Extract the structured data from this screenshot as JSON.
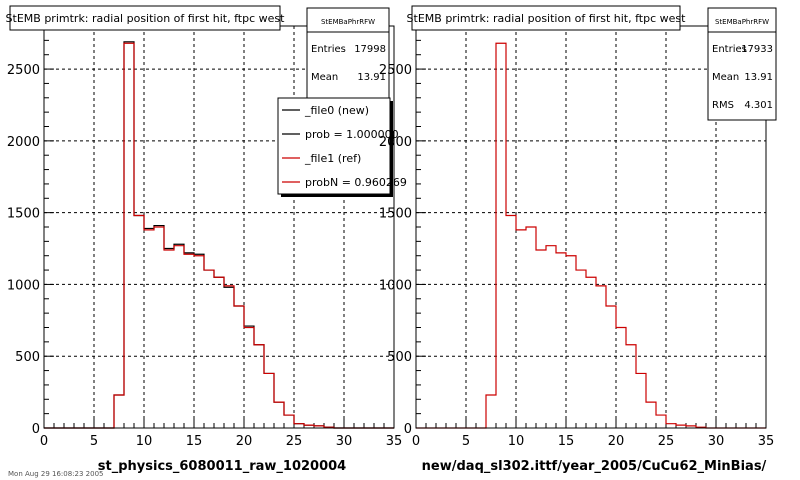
{
  "footer_text": "Mon Aug 29 16:08:23 2005",
  "colors": {
    "new": "#000000",
    "ref": "#cc0000",
    "grid": "#000000",
    "frame": "#000000"
  },
  "chart_data": [
    {
      "type": "histogram",
      "title": "StEMB primtrk: radial position of first hit, ftpc west",
      "xlabel": "st_physics_6080011_raw_1020004",
      "ylabel": "",
      "xlim": [
        0,
        35
      ],
      "ylim": [
        0,
        2800
      ],
      "xticks": [
        "0",
        "5",
        "10",
        "15",
        "20",
        "25",
        "30",
        "35"
      ],
      "xtick_values": [
        0,
        5,
        10,
        15,
        20,
        25,
        30,
        35
      ],
      "yticks": [
        "0",
        "500",
        "1000",
        "1500",
        "2000",
        "2500"
      ],
      "ytick_values": [
        0,
        500,
        1000,
        1500,
        2000,
        2500
      ],
      "grid": true,
      "bin_edges": [
        0,
        1,
        2,
        3,
        4,
        5,
        6,
        7,
        8,
        9,
        10,
        11,
        12,
        13,
        14,
        15,
        16,
        17,
        18,
        19,
        20,
        21,
        22,
        23,
        24,
        25,
        26,
        27,
        28,
        29,
        30,
        31,
        32,
        33,
        34,
        35
      ],
      "series": [
        {
          "name": "_file0 (new)",
          "color": "#000000",
          "values": [
            0,
            0,
            0,
            0,
            0,
            0,
            0,
            230,
            2690,
            1480,
            1390,
            1410,
            1250,
            1280,
            1220,
            1210,
            1100,
            1050,
            980,
            850,
            710,
            580,
            380,
            180,
            90,
            30,
            20,
            15,
            5,
            0,
            0,
            0,
            0,
            0,
            0
          ]
        },
        {
          "name": "_file1 (ref)",
          "color": "#cc0000",
          "values": [
            0,
            0,
            0,
            0,
            0,
            0,
            0,
            230,
            2680,
            1480,
            1380,
            1400,
            1240,
            1270,
            1210,
            1200,
            1100,
            1050,
            990,
            850,
            700,
            580,
            380,
            180,
            90,
            30,
            20,
            15,
            5,
            0,
            0,
            0,
            0,
            0,
            0
          ]
        }
      ],
      "stats": {
        "name": "StEMBaPhrRFW",
        "rows": [
          {
            "label": "Entries",
            "value": "17998"
          },
          {
            "label": "Mean",
            "value": "13.91"
          }
        ]
      },
      "legend": [
        {
          "label": "_file0 (new)",
          "color": "#000000"
        },
        {
          "label": "prob = 1.000000",
          "color": "#000000"
        },
        {
          "label": "_file1 (ref)",
          "color": "#cc0000"
        },
        {
          "label": "probN = 0.960269",
          "color": "#cc0000"
        }
      ]
    },
    {
      "type": "histogram",
      "title": "StEMB primtrk: radial position of first hit, ftpc west",
      "xlabel": "new/daq_sl302.ittf/year_2005/CuCu62_MinBias/",
      "ylabel": "",
      "xlim": [
        0,
        35
      ],
      "ylim": [
        0,
        2800
      ],
      "xticks": [
        "0",
        "5",
        "10",
        "15",
        "20",
        "25",
        "30",
        "35"
      ],
      "xtick_values": [
        0,
        5,
        10,
        15,
        20,
        25,
        30,
        35
      ],
      "yticks": [
        "0",
        "500",
        "1000",
        "1500",
        "2000",
        "2500"
      ],
      "ytick_values": [
        0,
        500,
        1000,
        1500,
        2000,
        2500
      ],
      "grid": true,
      "bin_edges": [
        0,
        1,
        2,
        3,
        4,
        5,
        6,
        7,
        8,
        9,
        10,
        11,
        12,
        13,
        14,
        15,
        16,
        17,
        18,
        19,
        20,
        21,
        22,
        23,
        24,
        25,
        26,
        27,
        28,
        29,
        30,
        31,
        32,
        33,
        34,
        35
      ],
      "series": [
        {
          "name": "",
          "color": "#cc0000",
          "values": [
            0,
            0,
            0,
            0,
            0,
            0,
            0,
            230,
            2680,
            1480,
            1380,
            1400,
            1240,
            1270,
            1220,
            1200,
            1100,
            1050,
            990,
            850,
            700,
            580,
            380,
            180,
            90,
            30,
            20,
            15,
            5,
            0,
            0,
            0,
            0,
            0,
            0
          ]
        }
      ],
      "stats": {
        "name": "StEMBaPhrRFW",
        "rows": [
          {
            "label": "Entries",
            "value": "17933"
          },
          {
            "label": "Mean",
            "value": "13.91"
          },
          {
            "label": "RMS",
            "value": "4.301"
          }
        ]
      },
      "legend": []
    }
  ]
}
